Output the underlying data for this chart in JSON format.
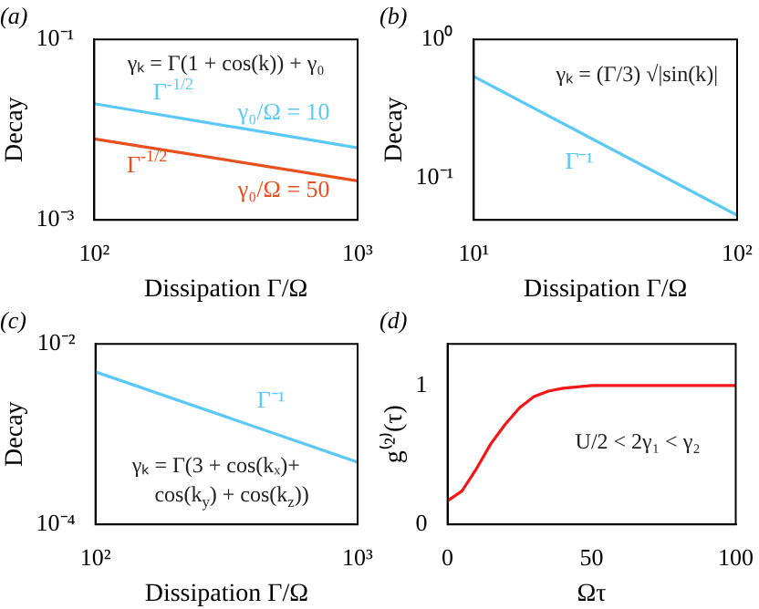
{
  "chart_data": [
    {
      "type": "line",
      "title": "(a)",
      "xlabel": "Dissipation Γ/Ω",
      "ylabel": "Decay",
      "log": "xy",
      "x": [
        100,
        1000
      ],
      "xlim": [
        100,
        1000
      ],
      "ylim": [
        0.001,
        0.1
      ],
      "xticks": [
        {
          "value": 100,
          "label": "10²"
        },
        {
          "value": 1000,
          "label": "10³"
        }
      ],
      "yticks": [
        {
          "value": 0.001,
          "label": "10⁻³"
        },
        {
          "value": 0.1,
          "label": "10⁻¹"
        }
      ],
      "series": [
        {
          "name": "γ₀/Ω = 10",
          "color": "#5bc8f5",
          "values": [
            0.0194,
            0.0063
          ]
        },
        {
          "name": "γ₀/Ω = 50",
          "color": "#e8501e",
          "values": [
            0.0079,
            0.0027
          ]
        }
      ],
      "annotations": [
        "γₖ = Γ(1 + cos(k)) + γ₀",
        "Γ$^{-1/2}$",
        "Γ$^{-1/2}$"
      ]
    },
    {
      "type": "line",
      "title": "(b)",
      "xlabel": "Dissipation Γ/Ω",
      "ylabel": "Decay",
      "log": "xy",
      "x": [
        10,
        100
      ],
      "xlim": [
        10,
        100
      ],
      "ylim": [
        0.05,
        1
      ],
      "xticks": [
        {
          "value": 10,
          "label": "10¹"
        },
        {
          "value": 100,
          "label": "10²"
        }
      ],
      "yticks": [
        {
          "value": 0.1,
          "label": "10⁻¹"
        },
        {
          "value": 1,
          "label": "10⁰"
        }
      ],
      "series": [
        {
          "color": "#5bc8f5",
          "values": [
            0.54,
            0.054
          ]
        }
      ],
      "annotations": [
        "γₖ = (Γ/3) √|sin(k)|",
        "Γ⁻¹"
      ]
    },
    {
      "type": "line",
      "title": "(c)",
      "xlabel": "Dissipation Γ/Ω",
      "ylabel": "Decay",
      "log": "xy",
      "x": [
        100,
        1000
      ],
      "xlim": [
        100,
        1000
      ],
      "ylim": [
        0.0001,
        0.01
      ],
      "xticks": [
        {
          "value": 100,
          "label": "10²"
        },
        {
          "value": 1000,
          "label": "10³"
        }
      ],
      "yticks": [
        {
          "value": 0.0001,
          "label": "10⁻⁴"
        },
        {
          "value": 0.01,
          "label": "10⁻²"
        }
      ],
      "series": [
        {
          "color": "#5bc8f5",
          "values": [
            0.0049,
            0.00049
          ]
        }
      ],
      "annotations": [
        "γₖ = Γ(3 + cos(kₓ)+",
        "cos(k$_{y}$) + cos(k$_{z}$))",
        "Γ⁻¹"
      ]
    },
    {
      "type": "line",
      "title": "(d)",
      "xlabel": "Ωτ",
      "ylabel": "g⁽²⁾(τ)",
      "x": [
        0,
        5,
        10,
        15,
        20,
        25,
        30,
        35,
        40,
        50,
        60,
        100
      ],
      "xlim": [
        0,
        100
      ],
      "ylim": [
        0,
        1.3
      ],
      "xticks": [
        0,
        50,
        100
      ],
      "yticks": [
        0,
        1
      ],
      "series": [
        {
          "color": "#f01818",
          "values": [
            0.17,
            0.24,
            0.4,
            0.58,
            0.72,
            0.84,
            0.92,
            0.96,
            0.98,
            1,
            1,
            1
          ]
        }
      ],
      "annotations": [
        "U/2 < 2γ₁ < γ₂"
      ]
    }
  ]
}
